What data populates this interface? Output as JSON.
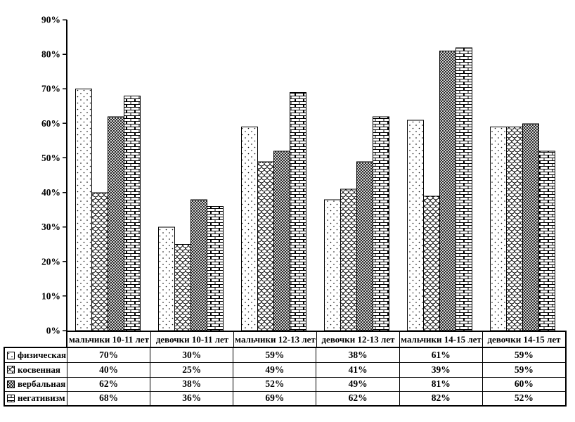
{
  "chart_data": {
    "type": "bar",
    "categories": [
      "мальчики 10-11 лет",
      "девочки 10-11 лет",
      "мальчики 12-13 лет",
      "девочки 12-13 лет",
      "мальчики 14-15 лет",
      "девочки 14-15 лет"
    ],
    "series": [
      {
        "name": "физическая",
        "pattern": "dots",
        "values": [
          70,
          30,
          59,
          38,
          61,
          59
        ]
      },
      {
        "name": "косвенная",
        "pattern": "scales",
        "values": [
          40,
          25,
          49,
          41,
          39,
          59
        ]
      },
      {
        "name": "вербальная",
        "pattern": "crosshatch",
        "values": [
          62,
          38,
          52,
          49,
          81,
          60
        ]
      },
      {
        "name": "негативизм",
        "pattern": "bricks",
        "values": [
          68,
          36,
          69,
          62,
          82,
          52
        ]
      }
    ],
    "title": "",
    "xlabel": "",
    "ylabel": "",
    "ylim": [
      0,
      90
    ],
    "yticks": [
      "0%",
      "10%",
      "20%",
      "30%",
      "40%",
      "50%",
      "60%",
      "70%",
      "80%",
      "90%"
    ],
    "value_suffix": "%",
    "grid": false,
    "legend_position": "table-left",
    "bar_outline_color": "#000000",
    "background_color": "#ffffff"
  }
}
